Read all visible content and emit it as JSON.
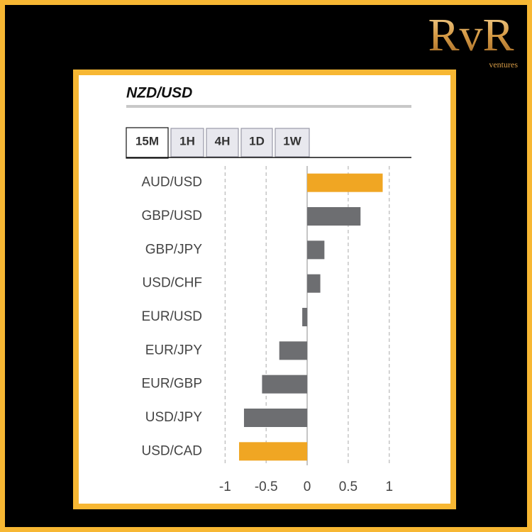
{
  "logo": {
    "brand": "RvR",
    "tagline": "ventures"
  },
  "tabs": [
    "15M",
    "1H",
    "4H",
    "1D",
    "1W"
  ],
  "active_tab": 0,
  "chart_data": {
    "type": "bar",
    "orientation": "horizontal",
    "title": "NZD/USD",
    "categories": [
      "AUD/USD",
      "GBP/USD",
      "GBP/JPY",
      "USD/CHF",
      "EUR/USD",
      "EUR/JPY",
      "EUR/GBP",
      "USD/JPY",
      "USD/CAD"
    ],
    "values": [
      0.92,
      0.65,
      0.21,
      0.16,
      -0.06,
      -0.34,
      -0.55,
      -0.77,
      -0.83
    ],
    "colors": [
      "#f0a623",
      "#6d6e71",
      "#6d6e71",
      "#6d6e71",
      "#6d6e71",
      "#6d6e71",
      "#6d6e71",
      "#6d6e71",
      "#f0a623"
    ],
    "xlim": [
      -1.15,
      1.27
    ],
    "xticks": [
      -1,
      -0.5,
      0,
      0.5,
      1
    ],
    "grid": true
  }
}
